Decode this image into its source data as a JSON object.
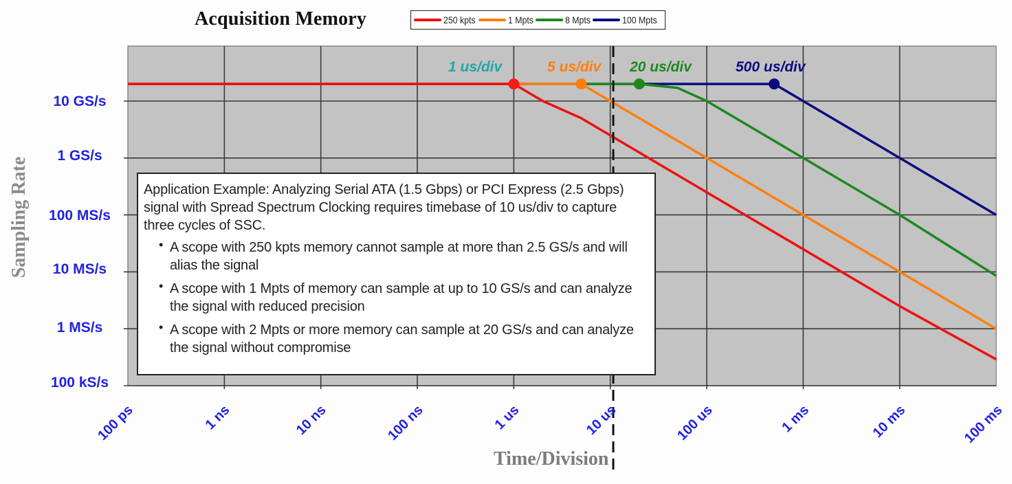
{
  "title": "Acquisition Memory",
  "legend": [
    {
      "label": "250 kpts",
      "color": "#ee1111"
    },
    {
      "label": "1 Mpts",
      "color": "#ff7f0e"
    },
    {
      "label": "8 Mpts",
      "color": "#1f881f"
    },
    {
      "label": "100 Mpts",
      "color": "#0c0c80"
    }
  ],
  "axes": {
    "ylabel": "Sampling Rate",
    "xlabel": "Time/Division",
    "yticks": [
      "10 GS/s",
      "1 GS/s",
      "100 MS/s",
      "10 MS/s",
      "1 MS/s",
      "100 kS/s"
    ],
    "xticks": [
      "100 ps",
      "1 ns",
      "10 ns",
      "100 ns",
      "1 us",
      "10 us",
      "100 us",
      "1 ms",
      "10 ms",
      "100 ms"
    ]
  },
  "markers": [
    {
      "label": "1 us/div",
      "color": "#21a6a6",
      "dot_color": "#ff1a1a"
    },
    {
      "label": "5 us/div",
      "color": "#ff7f0e",
      "dot_color": "#ff7f0e"
    },
    {
      "label": "20 us/div",
      "color": "#1f881f",
      "dot_color": "#1f881f"
    },
    {
      "label": "500 us/div",
      "color": "#0c0c80",
      "dot_color": "#0c0c80"
    }
  ],
  "annotation": {
    "intro": "Application Example:  Analyzing Serial ATA (1.5 Gbps) or PCI Express (2.5 Gbps) signal with Spread Spectrum Clocking requires timebase of 10 us/div to capture three cycles of SSC.",
    "bullets": [
      "A scope with 250 kpts memory cannot sample at more than 2.5 GS/s and will alias the signal",
      "A scope with 1 Mpts of memory can sample at up to 10 GS/s and can analyze the signal with reduced precision",
      "A scope with 2 Mpts or more memory can sample at 20 GS/s and can analyze the signal without compromise"
    ]
  },
  "chart_data": {
    "type": "line",
    "title": "Acquisition Memory",
    "xlabel": "Time/Division",
    "ylabel": "Sampling Rate",
    "xscale": "log",
    "yscale": "log",
    "xlim_seconds": [
      1e-10,
      0.1
    ],
    "ylim_samples_per_second": [
      100000.0,
      100000000000.0
    ],
    "grid": true,
    "legend_position": "top",
    "x_tick_labels": [
      "100 ps",
      "1 ns",
      "10 ns",
      "100 ns",
      "1 us",
      "10 us",
      "100 us",
      "1 ms",
      "10 ms",
      "100 ms"
    ],
    "y_tick_labels": [
      "10 GS/s",
      "1 GS/s",
      "100 MS/s",
      "10 MS/s",
      "1 MS/s",
      "100 kS/s"
    ],
    "series": [
      {
        "name": "250 kpts",
        "color": "#ee1111",
        "points": [
          [
            1e-10,
            20000000000.0
          ],
          [
            1e-06,
            20000000000.0
          ],
          [
            2e-06,
            10000000000.0
          ],
          [
            5e-06,
            5000000000.0
          ],
          [
            1e-05,
            2500000000.0
          ],
          [
            0.0001,
            250000000.0
          ],
          [
            0.001,
            25000000.0
          ],
          [
            0.01,
            2500000.0
          ],
          [
            0.1,
            290000.0
          ]
        ]
      },
      {
        "name": "1 Mpts",
        "color": "#ff7f0e",
        "points": [
          [
            1e-10,
            20000000000.0
          ],
          [
            5e-06,
            20000000000.0
          ],
          [
            1e-05,
            10000000000.0
          ],
          [
            0.0001,
            1000000000.0
          ],
          [
            0.001,
            100000000.0
          ],
          [
            0.01,
            10000000.0
          ],
          [
            0.1,
            1000000.0
          ]
        ]
      },
      {
        "name": "8 Mpts",
        "color": "#1f881f",
        "points": [
          [
            1e-10,
            20000000000.0
          ],
          [
            2e-05,
            20000000000.0
          ],
          [
            5e-05,
            17000000000.0
          ],
          [
            0.0001,
            10000000000.0
          ],
          [
            0.001,
            1000000000.0
          ],
          [
            0.01,
            100000000.0
          ],
          [
            0.1,
            8500000.0
          ]
        ]
      },
      {
        "name": "100 Mpts",
        "color": "#0c0c80",
        "points": [
          [
            1e-10,
            20000000000.0
          ],
          [
            0.0005,
            20000000000.0
          ],
          [
            0.001,
            10000000000.0
          ],
          [
            0.01,
            1000000000.0
          ],
          [
            0.1,
            100000000.0
          ]
        ]
      }
    ],
    "annotations": [
      {
        "text": "1 us/div",
        "x": 1e-06,
        "y": 20000000000.0
      },
      {
        "text": "5 us/div",
        "x": 5e-06,
        "y": 20000000000.0
      },
      {
        "text": "20 us/div",
        "x": 2e-05,
        "y": 20000000000.0
      },
      {
        "text": "500 us/div",
        "x": 0.0005,
        "y": 20000000000.0
      },
      {
        "text": "dashed vertical reference line",
        "x": 1e-05
      }
    ]
  }
}
